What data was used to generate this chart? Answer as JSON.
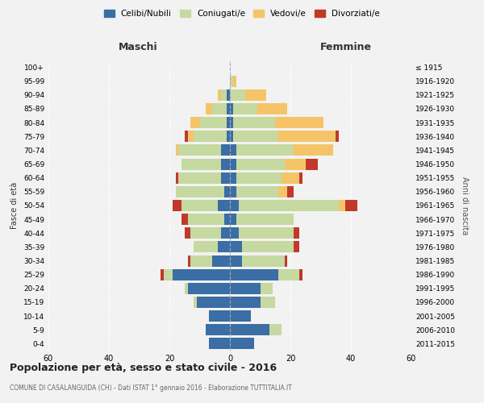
{
  "age_groups": [
    "0-4",
    "5-9",
    "10-14",
    "15-19",
    "20-24",
    "25-29",
    "30-34",
    "35-39",
    "40-44",
    "45-49",
    "50-54",
    "55-59",
    "60-64",
    "65-69",
    "70-74",
    "75-79",
    "80-84",
    "85-89",
    "90-94",
    "95-99",
    "100+"
  ],
  "birth_years": [
    "2011-2015",
    "2006-2010",
    "2001-2005",
    "1996-2000",
    "1991-1995",
    "1986-1990",
    "1981-1985",
    "1976-1980",
    "1971-1975",
    "1966-1970",
    "1961-1965",
    "1956-1960",
    "1951-1955",
    "1946-1950",
    "1941-1945",
    "1936-1940",
    "1931-1935",
    "1926-1930",
    "1921-1925",
    "1916-1920",
    "≤ 1915"
  ],
  "colors": {
    "celibi": "#3a6ea5",
    "coniugati": "#c5d9a0",
    "vedovi": "#f5c469",
    "divorziati": "#c0392b"
  },
  "male": {
    "celibi": [
      7,
      8,
      7,
      11,
      14,
      19,
      6,
      4,
      3,
      2,
      4,
      2,
      3,
      3,
      3,
      1,
      1,
      1,
      1,
      0,
      0
    ],
    "coniugati": [
      0,
      0,
      0,
      1,
      1,
      3,
      7,
      8,
      10,
      12,
      12,
      16,
      14,
      13,
      14,
      11,
      9,
      5,
      2,
      0,
      0
    ],
    "vedovi": [
      0,
      0,
      0,
      0,
      0,
      0,
      0,
      0,
      0,
      0,
      0,
      0,
      0,
      0,
      1,
      2,
      3,
      2,
      1,
      0,
      0
    ],
    "divorziati": [
      0,
      0,
      0,
      0,
      0,
      1,
      1,
      0,
      2,
      2,
      3,
      0,
      1,
      0,
      0,
      1,
      0,
      0,
      0,
      0,
      0
    ]
  },
  "female": {
    "celibi": [
      8,
      13,
      7,
      10,
      10,
      16,
      4,
      4,
      3,
      2,
      3,
      2,
      2,
      2,
      2,
      1,
      1,
      1,
      0,
      0,
      0
    ],
    "coniugati": [
      0,
      4,
      0,
      5,
      4,
      7,
      14,
      17,
      18,
      19,
      33,
      14,
      15,
      16,
      19,
      15,
      14,
      8,
      5,
      1,
      0
    ],
    "vedovi": [
      0,
      0,
      0,
      0,
      0,
      0,
      0,
      0,
      0,
      0,
      2,
      3,
      6,
      7,
      13,
      19,
      16,
      10,
      7,
      1,
      0
    ],
    "divorziati": [
      0,
      0,
      0,
      0,
      0,
      1,
      1,
      2,
      2,
      0,
      4,
      2,
      1,
      4,
      0,
      1,
      0,
      0,
      0,
      0,
      0
    ]
  },
  "title": "Popolazione per età, sesso e stato civile - 2016",
  "subtitle": "COMUNE DI CASALANGUIDA (CH) - Dati ISTAT 1° gennaio 2016 - Elaborazione TUTTITALIA.IT",
  "xlabel_left": "Maschi",
  "xlabel_right": "Femmine",
  "ylabel_left": "Fasce di età",
  "ylabel_right": "Anni di nascita",
  "legend_labels": [
    "Celibi/Nubili",
    "Coniugati/e",
    "Vedovi/e",
    "Divorziati/e"
  ],
  "xlim": 60,
  "background_color": "#f2f2f2"
}
